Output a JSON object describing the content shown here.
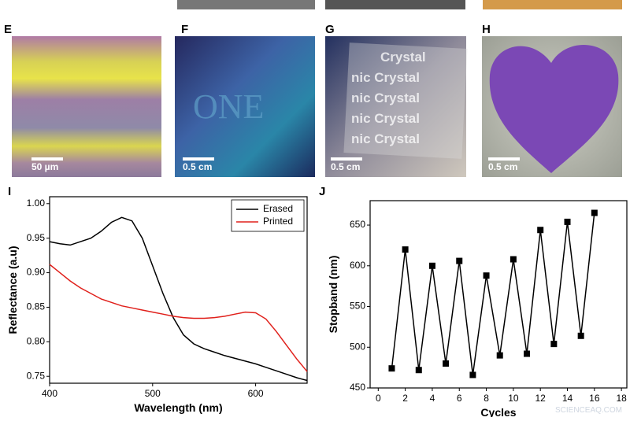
{
  "panels": [
    {
      "label": "E",
      "scale_bar": "50 µm"
    },
    {
      "label": "F",
      "scale_bar": "0.5 cm"
    },
    {
      "label": "G",
      "scale_bar": "0.5 cm",
      "photo_text": [
        "Crystal",
        "nic Crystal",
        "nic Crystal",
        "nic Crystal",
        "nic Crystal"
      ]
    },
    {
      "label": "H",
      "scale_bar": "0.5 cm"
    }
  ],
  "watermark": "SCIENCEAQ.COM",
  "chart_data": [
    {
      "type": "line",
      "panel_label": "I",
      "x_label": "Wavelength (nm)",
      "y_label": "Reflectance (a.u)",
      "xlim": [
        400,
        650
      ],
      "xticks": [
        400,
        500,
        600
      ],
      "ylim": [
        0.74,
        1.01
      ],
      "yticks": [
        {
          "value": 0.75,
          "label": "0.75"
        },
        {
          "value": 0.8,
          "label": "0.80"
        },
        0.85,
        {
          "value": 0.9,
          "label": "0.90"
        },
        0.95,
        {
          "value": 1,
          "label": "1.00"
        }
      ],
      "legend": "top-right",
      "series": [
        {
          "name": "Erased",
          "color": "#000000",
          "x": [
            400,
            410,
            420,
            430,
            440,
            450,
            460,
            470,
            480,
            490,
            500,
            510,
            520,
            530,
            540,
            550,
            560,
            570,
            580,
            590,
            600,
            610,
            620,
            630,
            640,
            650
          ],
          "values": [
            0.945,
            0.942,
            0.94,
            0.945,
            0.95,
            0.96,
            0.973,
            0.98,
            0.975,
            0.95,
            0.91,
            0.87,
            0.835,
            0.81,
            0.797,
            0.79,
            0.785,
            0.78,
            0.776,
            0.772,
            0.768,
            0.763,
            0.758,
            0.753,
            0.748,
            0.744
          ]
        },
        {
          "name": "Printed",
          "color": "#e0201b",
          "x": [
            400,
            410,
            420,
            430,
            440,
            450,
            460,
            470,
            480,
            490,
            500,
            510,
            520,
            530,
            540,
            550,
            560,
            570,
            580,
            590,
            600,
            610,
            620,
            630,
            640,
            650
          ],
          "values": [
            0.912,
            0.9,
            0.888,
            0.878,
            0.87,
            0.862,
            0.857,
            0.852,
            0.849,
            0.846,
            0.843,
            0.84,
            0.837,
            0.835,
            0.834,
            0.834,
            0.835,
            0.837,
            0.84,
            0.843,
            0.842,
            0.833,
            0.815,
            0.795,
            0.775,
            0.757
          ]
        }
      ]
    },
    {
      "type": "line",
      "panel_label": "J",
      "x_label": "Cycles",
      "y_label": "Stopband (nm)",
      "marker": "square",
      "color": "#000000",
      "xlim": [
        -0.6,
        18.4
      ],
      "xticks": [
        0,
        2,
        4,
        6,
        8,
        10,
        12,
        14,
        16,
        18
      ],
      "ylim": [
        450,
        680
      ],
      "yticks": [
        450,
        500,
        550,
        600,
        650
      ],
      "x": [
        1,
        2,
        3,
        4,
        5,
        6,
        7,
        8,
        9,
        10,
        11,
        12,
        13,
        14,
        15,
        16
      ],
      "values": [
        474,
        620,
        472,
        600,
        480,
        606,
        466,
        588,
        490,
        608,
        492,
        644,
        504,
        654,
        514,
        665
      ]
    }
  ]
}
